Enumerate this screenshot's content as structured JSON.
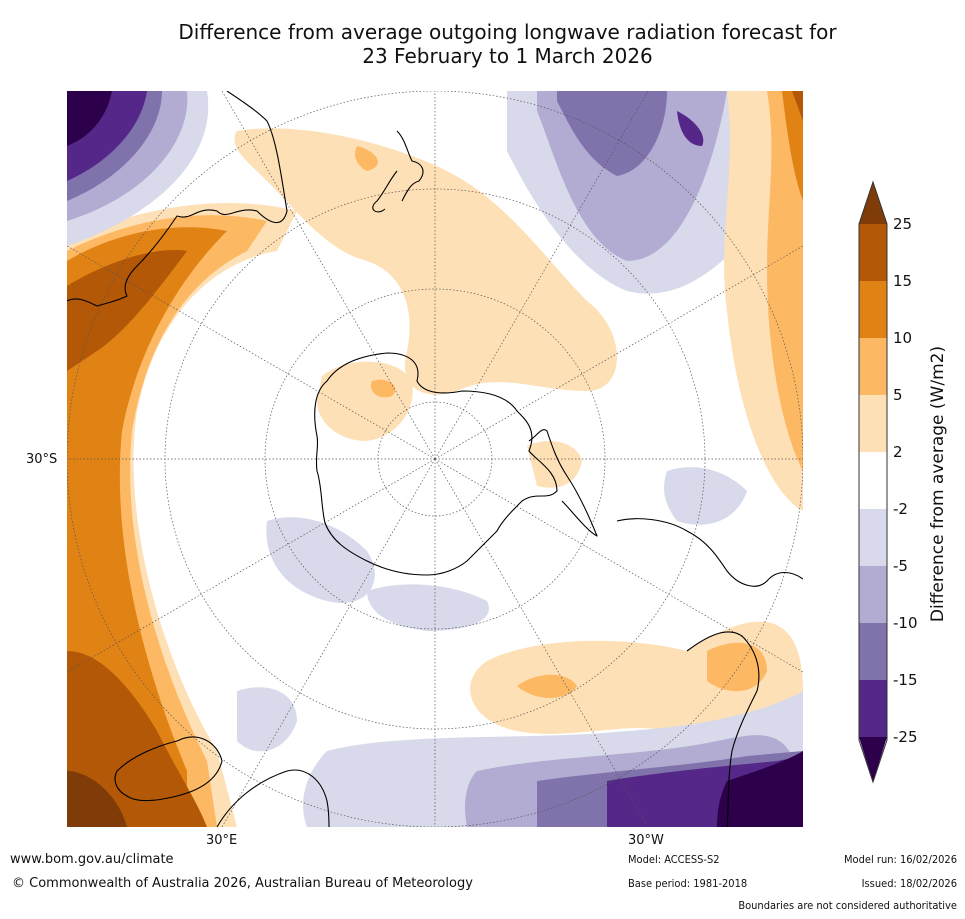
{
  "title": {
    "line1": "Difference from average outgoing longwave radiation forecast for",
    "line2": "23 February to 1 March 2026"
  },
  "map": {
    "projection": "south polar stereographic",
    "lat_label": "30°S",
    "lon_labels": [
      "30°E",
      "30°W"
    ],
    "palette": {
      "neg25": "#2d004b",
      "neg15": "#542788",
      "neg10": "#8073ac",
      "neg5": "#b2abd2",
      "neg2": "#d8daeb",
      "zero": "#ffffff",
      "pos2": "#fee0b6",
      "pos5": "#fdb863",
      "pos10": "#e08214",
      "pos15": "#b35806",
      "pos25": "#7f3b08"
    }
  },
  "colorbar": {
    "title": "Difference from average (W/m2)",
    "ticks": [
      "25",
      "15",
      "10",
      "5",
      "2",
      "-2",
      "-5",
      "-10",
      "-15",
      "-25"
    ],
    "colors": [
      "#7f3b08",
      "#b35806",
      "#e08214",
      "#fdb863",
      "#fee0b6",
      "#ffffff",
      "#d8daeb",
      "#b2abd2",
      "#8073ac",
      "#542788",
      "#2d004b"
    ]
  },
  "footer": {
    "website": "www.bom.gov.au/climate",
    "copyright": "© Commonwealth of Australia 2026, Australian Bureau of Meteorology",
    "model": "Model: ACCESS-S2",
    "base_period": "Base period: 1981-2018",
    "model_run": "Model run: 16/02/2026",
    "issued": "Issued: 18/02/2026",
    "disclaimer": "Boundaries are not considered authoritative"
  }
}
